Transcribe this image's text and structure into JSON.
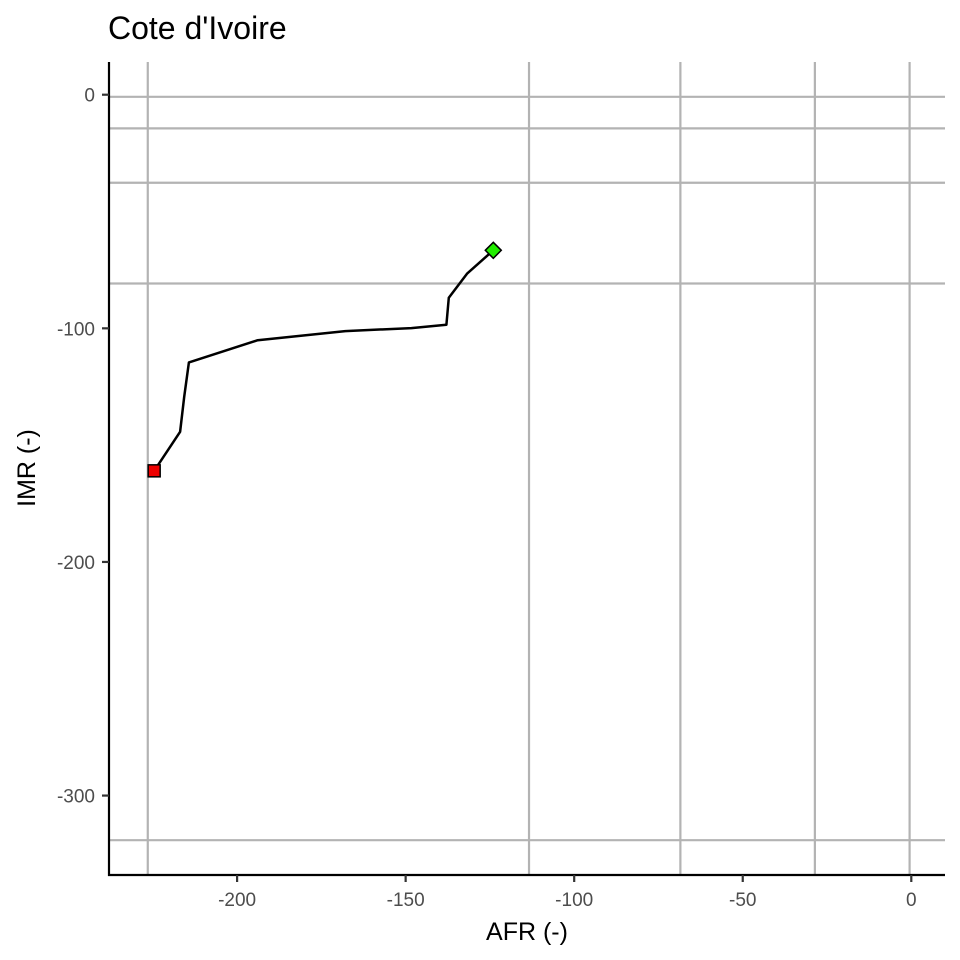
{
  "chart_data": {
    "type": "line",
    "title": "Cote d'Ivoire",
    "xlabel": "AFR (-)",
    "ylabel": "IMR (-)",
    "xlim": [
      -238,
      10
    ],
    "ylim": [
      -334,
      14
    ],
    "x_ticks": [
      -200,
      -150,
      -100,
      -50,
      0
    ],
    "y_ticks": [
      0,
      -100,
      -200,
      -300
    ],
    "x_tick_labels": [
      "-200",
      "-150",
      "-100",
      "-50",
      "0"
    ],
    "y_tick_labels": [
      "0",
      "-100",
      "-200",
      "-300"
    ],
    "reference_lines_x": [
      -226.5,
      -113.4,
      -68.5,
      -28.6,
      -0.5
    ],
    "reference_lines_y": [
      -0.9,
      -14.4,
      -37.7,
      -80.8,
      -319.1
    ],
    "series": [
      {
        "x": [
          -224.6,
          -216.9,
          -215.7,
          -214.3,
          -193.9,
          -167.9,
          -148.3,
          -137.9,
          -137.2,
          -131.8,
          -124.0
        ],
        "y": [
          -161.0,
          -144.3,
          -129.3,
          -114.6,
          -105.1,
          -101.2,
          -99.9,
          -98.5,
          -86.9,
          -76.6,
          -66.6
        ]
      }
    ],
    "start_marker": {
      "x": -224.6,
      "y": -161.0,
      "shape": "square",
      "color": "#ee0000"
    },
    "end_marker": {
      "x": -124.0,
      "y": -66.6,
      "shape": "diamond",
      "color": "#22ee00"
    },
    "grid": true,
    "legend": "none",
    "colors": {
      "grid": "#b3b3b3",
      "line": "#000000",
      "start": "#ee0000",
      "end": "#22ee00"
    }
  }
}
